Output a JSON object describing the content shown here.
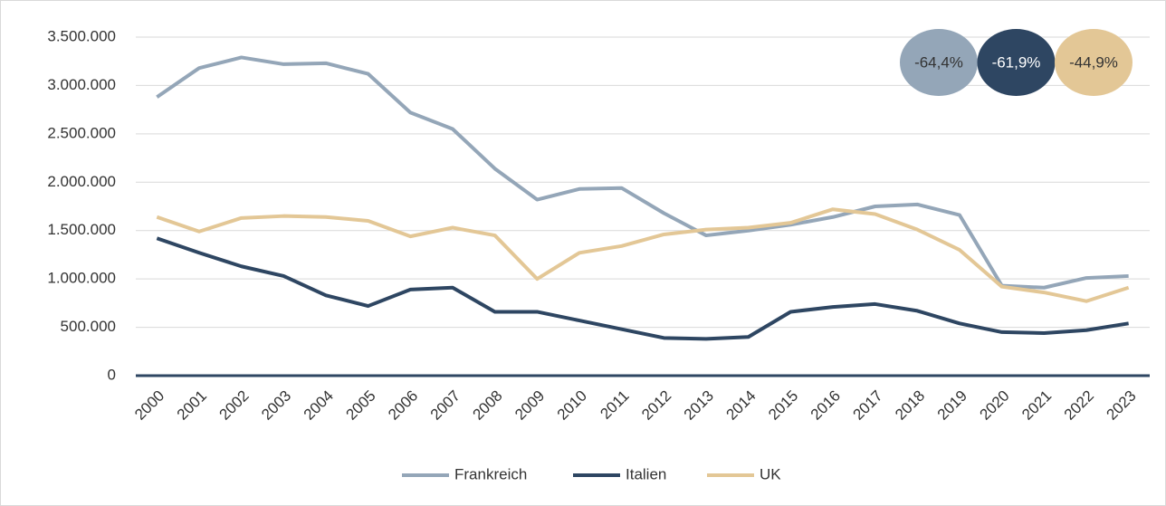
{
  "chart_data": {
    "type": "line",
    "categories": [
      "2000",
      "2001",
      "2002",
      "2003",
      "2004",
      "2005",
      "2006",
      "2007",
      "2008",
      "2009",
      "2010",
      "2011",
      "2012",
      "2013",
      "2014",
      "2015",
      "2016",
      "2017",
      "2018",
      "2019",
      "2020",
      "2021",
      "2022",
      "2023"
    ],
    "series": [
      {
        "name": "Frankreich",
        "color": "#94a6b8",
        "values": [
          2880000,
          3180000,
          3290000,
          3220000,
          3230000,
          3120000,
          2720000,
          2550000,
          2140000,
          1820000,
          1930000,
          1940000,
          1680000,
          1450000,
          1500000,
          1560000,
          1640000,
          1750000,
          1770000,
          1660000,
          930000,
          910000,
          1010000,
          1030000
        ]
      },
      {
        "name": "Italien",
        "color": "#2e4662",
        "values": [
          1420000,
          1270000,
          1130000,
          1030000,
          830000,
          720000,
          890000,
          910000,
          660000,
          660000,
          570000,
          480000,
          390000,
          380000,
          400000,
          660000,
          710000,
          740000,
          670000,
          540000,
          450000,
          440000,
          470000,
          540000
        ]
      },
      {
        "name": "UK",
        "color": "#e3c796",
        "values": [
          1640000,
          1490000,
          1630000,
          1650000,
          1640000,
          1600000,
          1440000,
          1530000,
          1450000,
          1000000,
          1270000,
          1340000,
          1460000,
          1510000,
          1530000,
          1580000,
          1720000,
          1670000,
          1510000,
          1300000,
          920000,
          860000,
          770000,
          910000
        ]
      }
    ],
    "ylim": [
      0,
      3500000
    ],
    "yticks": [
      0,
      {
        "value": 500000,
        "label": "500.000"
      },
      {
        "value": 1000000,
        "label": "1.000.000"
      },
      {
        "value": 1500000,
        "label": "1.500.000"
      },
      {
        "value": 2000000,
        "label": "2.000.000"
      },
      {
        "value": 2500000,
        "label": "2.500.000"
      },
      {
        "value": 3000000,
        "label": "3.000.000"
      },
      {
        "value": 3500000,
        "label": "3.500.000"
      }
    ],
    "grid": true,
    "legend": "bottom",
    "annotations": [
      {
        "text": "-64,4%",
        "color": "#94a6b8"
      },
      {
        "text": "-61,9%",
        "color": "#2e4662"
      },
      {
        "text": "-44,9%",
        "color": "#e3c796"
      }
    ]
  }
}
